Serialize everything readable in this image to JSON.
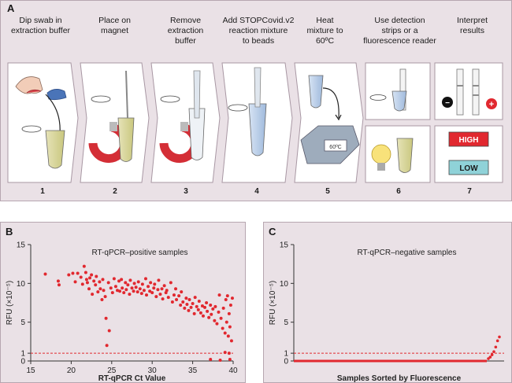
{
  "panel_a": {
    "label": "A",
    "steps": [
      {
        "num": "1",
        "text": "Dip swab in\nextraction buffer"
      },
      {
        "num": "2",
        "text": "Place on\nmagnet"
      },
      {
        "num": "3",
        "text": "Remove\nextraction\nbuffer"
      },
      {
        "num": "4",
        "text": "Add STOPCovid.v2\nreaction mixture\nto beads"
      },
      {
        "num": "5",
        "text": "Heat\nmixture to\n60ºC"
      },
      {
        "num": "6",
        "text": "Use detection\nstrips or a\nfluorescence reader"
      },
      {
        "num": "7",
        "text": "Interpret\nresults"
      }
    ],
    "heat_display": "60ºC",
    "high_label": "HIGH",
    "low_label": "LOW",
    "neg_symbol": "−",
    "pos_symbol": "+"
  },
  "chart_data": [
    {
      "type": "scatter",
      "panel_label": "B",
      "title": "RT-qPCR–positive samples",
      "xlabel": "RT-qPCR Ct Value",
      "ylabel": "RFU (×10⁻⁵)",
      "xlim": [
        15,
        40
      ],
      "ylim": [
        0,
        15
      ],
      "xticks": [
        "15",
        "20",
        "25",
        "30",
        "35",
        "40"
      ],
      "yticks": [
        "0",
        "1",
        "5",
        "10",
        "15"
      ],
      "threshold": 1,
      "points": [
        [
          16.8,
          11.2
        ],
        [
          18.4,
          10.3
        ],
        [
          18.5,
          9.8
        ],
        [
          19.7,
          11.1
        ],
        [
          20.2,
          11.3
        ],
        [
          20.5,
          10.2
        ],
        [
          20.8,
          11.3
        ],
        [
          21.2,
          10.8
        ],
        [
          21.4,
          9.9
        ],
        [
          21.6,
          12.2
        ],
        [
          21.8,
          11.4
        ],
        [
          21.9,
          10.5
        ],
        [
          22.0,
          10.1
        ],
        [
          22.2,
          9.3
        ],
        [
          22.3,
          10.7
        ],
        [
          22.5,
          11.1
        ],
        [
          22.6,
          8.6
        ],
        [
          22.8,
          10.3
        ],
        [
          23.0,
          9.8
        ],
        [
          23.1,
          10.9
        ],
        [
          23.3,
          8.9
        ],
        [
          23.5,
          10.2
        ],
        [
          23.6,
          9.3
        ],
        [
          23.8,
          7.9
        ],
        [
          23.9,
          10.5
        ],
        [
          24.0,
          9.1
        ],
        [
          24.2,
          8.3
        ],
        [
          24.3,
          5.5
        ],
        [
          24.4,
          2.0
        ],
        [
          24.6,
          10.1
        ],
        [
          24.7,
          3.9
        ],
        [
          24.9,
          9.4
        ],
        [
          25.1,
          8.8
        ],
        [
          25.3,
          10.6
        ],
        [
          25.5,
          9.6
        ],
        [
          25.7,
          9.1
        ],
        [
          25.9,
          10.3
        ],
        [
          26.0,
          9.0
        ],
        [
          26.2,
          10.5
        ],
        [
          26.3,
          9.4
        ],
        [
          26.5,
          8.8
        ],
        [
          26.7,
          10.1
        ],
        [
          26.8,
          9.2
        ],
        [
          27.0,
          9.8
        ],
        [
          27.2,
          8.6
        ],
        [
          27.3,
          10.4
        ],
        [
          27.5,
          9.4
        ],
        [
          27.7,
          9.0
        ],
        [
          27.8,
          10.0
        ],
        [
          28.0,
          9.5
        ],
        [
          28.2,
          8.9
        ],
        [
          28.3,
          10.2
        ],
        [
          28.5,
          9.3
        ],
        [
          28.7,
          8.7
        ],
        [
          28.8,
          9.9
        ],
        [
          29.0,
          9.1
        ],
        [
          29.2,
          10.6
        ],
        [
          29.3,
          8.5
        ],
        [
          29.5,
          9.6
        ],
        [
          29.7,
          9.0
        ],
        [
          29.8,
          10.1
        ],
        [
          30.0,
          8.8
        ],
        [
          30.2,
          9.4
        ],
        [
          30.3,
          9.9
        ],
        [
          30.5,
          8.3
        ],
        [
          30.7,
          9.2
        ],
        [
          30.8,
          10.4
        ],
        [
          31.0,
          8.6
        ],
        [
          31.2,
          9.3
        ],
        [
          31.3,
          8.0
        ],
        [
          31.5,
          9.7
        ],
        [
          31.7,
          8.8
        ],
        [
          31.8,
          9.1
        ],
        [
          32.0,
          8.2
        ],
        [
          32.3,
          10.1
        ],
        [
          32.5,
          7.6
        ],
        [
          32.7,
          8.5
        ],
        [
          32.9,
          9.3
        ],
        [
          33.0,
          7.9
        ],
        [
          33.3,
          8.4
        ],
        [
          33.5,
          7.2
        ],
        [
          33.6,
          8.9
        ],
        [
          33.8,
          7.6
        ],
        [
          34.0,
          6.8
        ],
        [
          34.2,
          8.1
        ],
        [
          34.3,
          7.3
        ],
        [
          34.5,
          6.5
        ],
        [
          34.6,
          7.9
        ],
        [
          34.8,
          6.9
        ],
        [
          35.0,
          7.4
        ],
        [
          35.2,
          6.1
        ],
        [
          35.3,
          8.2
        ],
        [
          35.5,
          7.0
        ],
        [
          35.7,
          6.6
        ],
        [
          35.8,
          7.7
        ],
        [
          36.0,
          6.2
        ],
        [
          36.2,
          7.1
        ],
        [
          36.3,
          5.8
        ],
        [
          36.5,
          6.9
        ],
        [
          36.7,
          7.5
        ],
        [
          36.8,
          6.4
        ],
        [
          37.0,
          5.6
        ],
        [
          37.2,
          7.2
        ],
        [
          37.3,
          6.0
        ],
        [
          37.5,
          6.7
        ],
        [
          37.7,
          5.2
        ],
        [
          37.8,
          7.0
        ],
        [
          38.0,
          4.8
        ],
        [
          38.2,
          6.3
        ],
        [
          38.3,
          8.5
        ],
        [
          38.5,
          5.5
        ],
        [
          38.7,
          4.2
        ],
        [
          38.8,
          6.8
        ],
        [
          39.0,
          3.6
        ],
        [
          39.1,
          7.9
        ],
        [
          39.2,
          5.0
        ],
        [
          39.3,
          8.4
        ],
        [
          39.4,
          3.2
        ],
        [
          39.5,
          6.1
        ],
        [
          39.6,
          4.4
        ],
        [
          39.7,
          7.2
        ],
        [
          39.8,
          2.6
        ],
        [
          39.9,
          8.1
        ],
        [
          39.0,
          1.1
        ],
        [
          39.5,
          1.0
        ],
        [
          39.6,
          0.2
        ],
        [
          38.4,
          0.1
        ],
        [
          37.2,
          0.2
        ]
      ]
    },
    {
      "type": "scatter",
      "panel_label": "C",
      "title": "RT-qPCR–negative samples",
      "xlabel": "Samples Sorted by Fluorescence",
      "ylabel": "RFU (×10⁻⁵)",
      "ylim": [
        0,
        15
      ],
      "yticks": [
        "0",
        "1",
        "5",
        "10",
        "15"
      ],
      "threshold": 1,
      "baseline": 0,
      "tail_points": [
        0.3,
        0.5,
        0.8,
        1.2,
        1.8,
        2.6,
        3.1
      ]
    }
  ]
}
